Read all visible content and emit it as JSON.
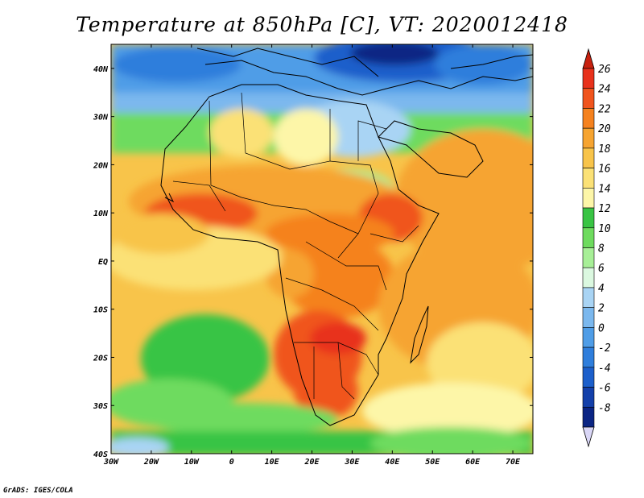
{
  "title": "Temperature at 850hPa [C], VT: 2020012418",
  "credit": "GrADS: IGES/COLA",
  "map": {
    "lon_range": [
      -30,
      75
    ],
    "lat_range": [
      -40,
      45
    ],
    "lon_ticks": [
      {
        "value": -30,
        "label": "30W"
      },
      {
        "value": -20,
        "label": "20W"
      },
      {
        "value": -10,
        "label": "10W"
      },
      {
        "value": 0,
        "label": "0"
      },
      {
        "value": 10,
        "label": "10E"
      },
      {
        "value": 20,
        "label": "20E"
      },
      {
        "value": 30,
        "label": "30E"
      },
      {
        "value": 40,
        "label": "40E"
      },
      {
        "value": 50,
        "label": "50E"
      },
      {
        "value": 60,
        "label": "60E"
      },
      {
        "value": 70,
        "label": "70E"
      }
    ],
    "lat_ticks": [
      {
        "value": 40,
        "label": "40N"
      },
      {
        "value": 30,
        "label": "30N"
      },
      {
        "value": 20,
        "label": "20N"
      },
      {
        "value": 10,
        "label": "10N"
      },
      {
        "value": 0,
        "label": "EQ"
      },
      {
        "value": -10,
        "label": "10S"
      },
      {
        "value": -20,
        "label": "20S"
      },
      {
        "value": -30,
        "label": "30S"
      },
      {
        "value": -40,
        "label": "40S"
      }
    ]
  },
  "colorbar": {
    "levels": [
      {
        "value": "26",
        "color": "#e8321c"
      },
      {
        "value": "24",
        "color": "#f0541d"
      },
      {
        "value": "22",
        "color": "#f5821f"
      },
      {
        "value": "20",
        "color": "#f6a431"
      },
      {
        "value": "18",
        "color": "#f8c44a"
      },
      {
        "value": "16",
        "color": "#fbe176"
      },
      {
        "value": "14",
        "color": "#fdf6a8"
      },
      {
        "value": "12",
        "color": "#39c444"
      },
      {
        "value": "10",
        "color": "#6edb5e"
      },
      {
        "value": "8",
        "color": "#a7ef97"
      },
      {
        "value": "6",
        "color": "#dbf8e0"
      },
      {
        "value": "4",
        "color": "#a9d4f4"
      },
      {
        "value": "2",
        "color": "#7bb8ee"
      },
      {
        "value": "0",
        "color": "#4f9de7"
      },
      {
        "value": "-2",
        "color": "#2f7edc"
      },
      {
        "value": "-4",
        "color": "#1c5fcb"
      },
      {
        "value": "-6",
        "color": "#1440aa"
      },
      {
        "value": "-8",
        "color": "#0b2584"
      }
    ],
    "top_arrow_color": "#c8210f",
    "bottom_arrow_color": "#d9d6f6"
  }
}
